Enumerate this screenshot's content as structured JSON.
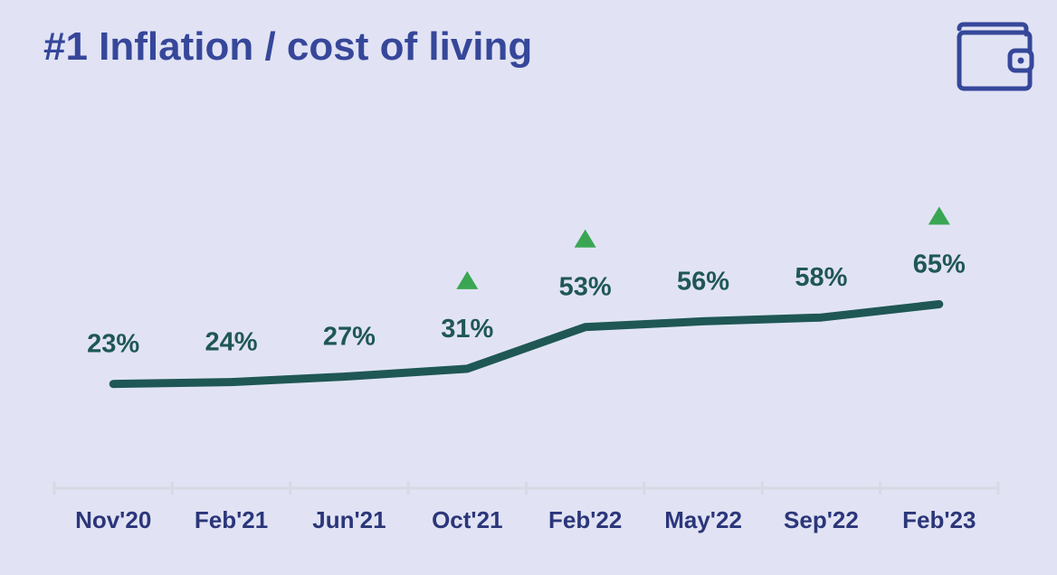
{
  "title": "#1 Inflation / cost of living",
  "icons": {
    "header_icon": "wallet-icon",
    "increase_marker": "triangle-up-icon"
  },
  "colors": {
    "background": "#e1e3f4",
    "title": "#36479a",
    "line": "#1f5755",
    "labels": "#1f5755",
    "ticks": "#2b367a",
    "axis": "#d8d9e4",
    "marker": "#3aa654"
  },
  "chart_data": {
    "type": "line",
    "title": "#1 Inflation / cost of living",
    "xlabel": "",
    "ylabel": "",
    "grid": false,
    "legend": "none",
    "categories": [
      "Nov'20",
      "Feb'21",
      "Jun'21",
      "Oct'21",
      "Feb'22",
      "May'22",
      "Sep'22",
      "Feb'23"
    ],
    "series": [
      {
        "values": [
          23,
          24,
          27,
          31,
          53,
          56,
          58,
          65
        ],
        "data_labels": [
          "23%",
          "24%",
          "27%",
          "31%",
          "53%",
          "56%",
          "58%",
          "65%"
        ],
        "increase_markers": [
          false,
          false,
          false,
          true,
          true,
          false,
          false,
          true
        ]
      }
    ]
  }
}
